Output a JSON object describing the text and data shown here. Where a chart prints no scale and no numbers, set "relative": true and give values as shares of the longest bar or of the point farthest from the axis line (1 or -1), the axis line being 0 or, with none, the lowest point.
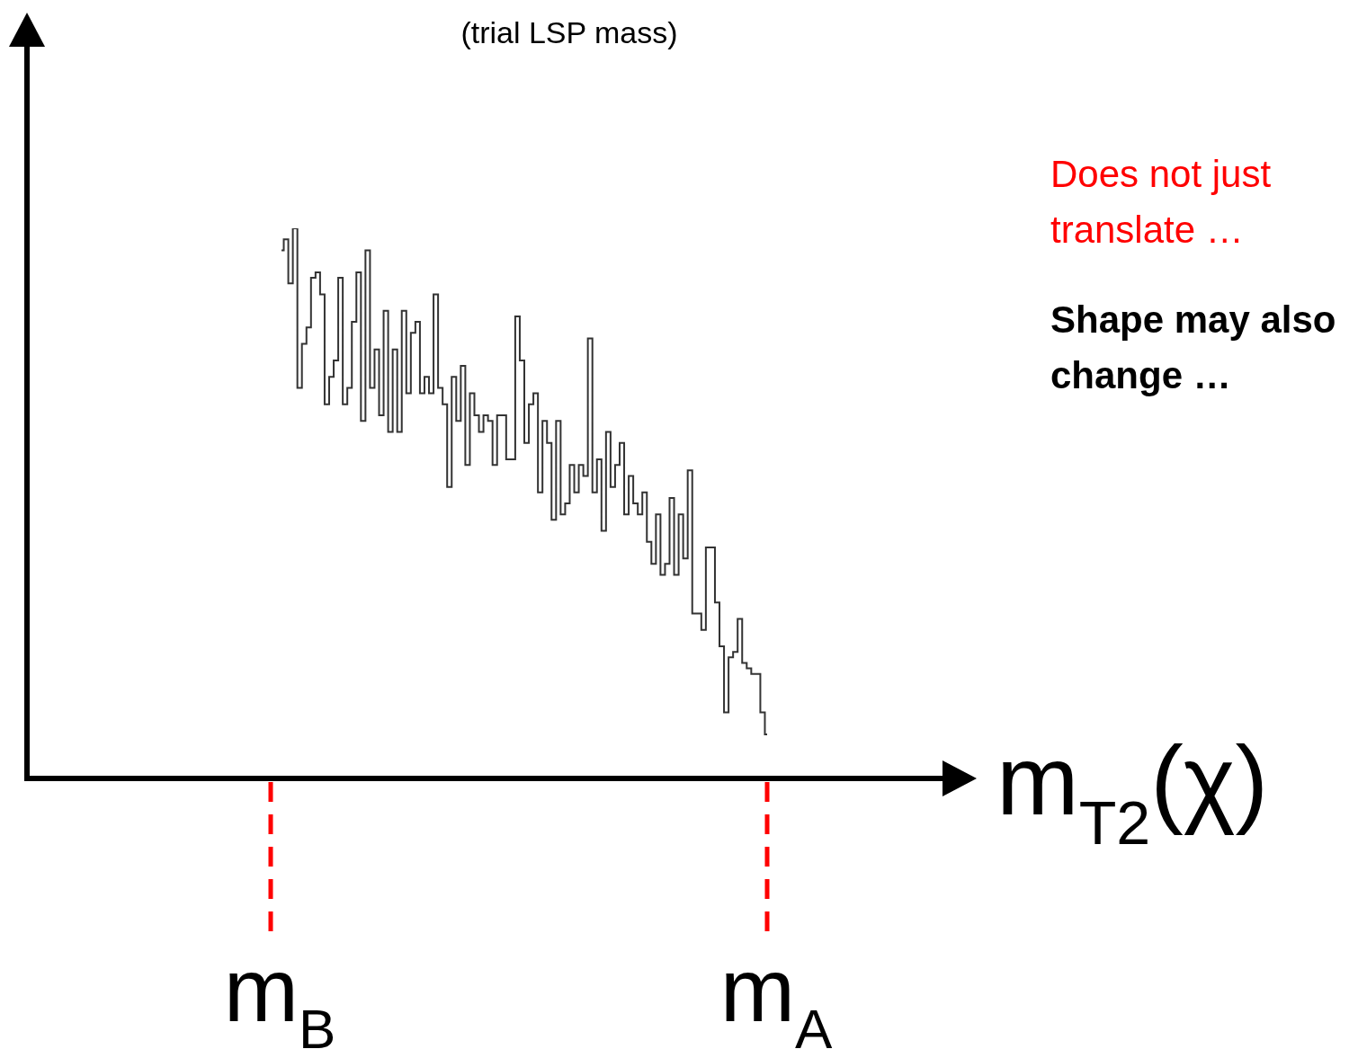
{
  "chart_data": {
    "type": "step",
    "relative": true,
    "title": "(trial LSP mass)",
    "xlabel": "m$_{T2}$(χ)",
    "color": "#333333",
    "categories": [
      null,
      null,
      null,
      null,
      null,
      null,
      null,
      null,
      null,
      null,
      null,
      null,
      null,
      null,
      null,
      null,
      null,
      null,
      null,
      null,
      null,
      null,
      null,
      null,
      null,
      null,
      null,
      null,
      null,
      null,
      null,
      null,
      null,
      null,
      null,
      null,
      null,
      null,
      null,
      null,
      null,
      null,
      null,
      null,
      null,
      null,
      null,
      null,
      null,
      null,
      null,
      null,
      null,
      null,
      null,
      null,
      null,
      null,
      null,
      null,
      null,
      null,
      null,
      null,
      null,
      null,
      null,
      null,
      null,
      null,
      null,
      null,
      null,
      null,
      null,
      null,
      null,
      null,
      null,
      null,
      null,
      null,
      null,
      null,
      null,
      null,
      null,
      null,
      null,
      null,
      null,
      null,
      null,
      null,
      null,
      null,
      null,
      null,
      null,
      null,
      null,
      null,
      null,
      null,
      null,
      null,
      null,
      null
    ],
    "values": [
      0.96,
      0.98,
      0.9,
      1,
      0.71,
      0.79,
      0.82,
      0.91,
      0.92,
      0.88,
      0.68,
      0.73,
      0.76,
      0.91,
      0.68,
      0.71,
      0.83,
      0.92,
      0.65,
      0.96,
      0.71,
      0.78,
      0.66,
      0.85,
      0.63,
      0.78,
      0.63,
      0.85,
      0.7,
      0.81,
      0.83,
      0.7,
      0.73,
      0.7,
      0.88,
      0.71,
      0.68,
      0.53,
      0.73,
      0.65,
      0.75,
      0.57,
      0.7,
      0.66,
      0.63,
      0.66,
      0.65,
      0.57,
      0.66,
      0.66,
      0.58,
      0.58,
      0.84,
      0.76,
      0.61,
      0.68,
      0.7,
      0.52,
      0.65,
      0.61,
      0.47,
      0.65,
      0.48,
      0.5,
      0.57,
      0.52,
      0.57,
      0.55,
      0.8,
      0.52,
      0.58,
      0.45,
      0.63,
      0.53,
      0.57,
      0.61,
      0.48,
      0.55,
      0.5,
      0.48,
      0.52,
      0.43,
      0.39,
      0.48,
      0.37,
      0.39,
      0.51,
      0.37,
      0.48,
      0.4,
      0.56,
      0.3,
      0.3,
      0.27,
      0.42,
      0.42,
      0.32,
      0.24,
      0.12,
      0.22,
      0.23,
      0.29,
      0.21,
      0.2,
      0.19,
      0.19,
      0.12,
      0.08
    ],
    "annotations": [
      "m$_{B}$",
      "m$_{A}$",
      "Does not just translate …",
      "Shape may also change …"
    ]
  }
}
